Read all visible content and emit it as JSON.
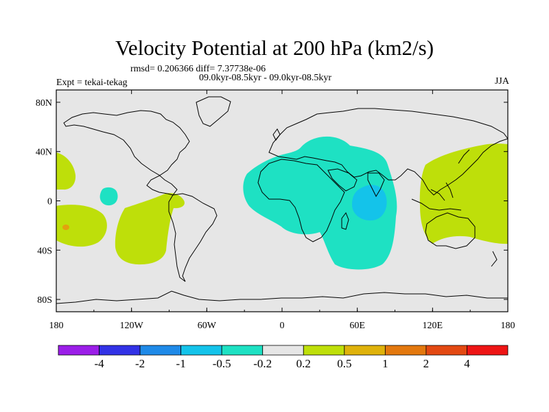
{
  "chart_data": {
    "type": "heatmap",
    "title": "Velocity Potential at 200 hPa (km2/s)",
    "stats_line": "rmsd= 0.206366 diff= 7.37738e-06",
    "period_line": "09.0kyr-08.5kyr - 09.0kyr-08.5kyr",
    "experiment": "Expt = tekai-tekag",
    "season": "JJA",
    "x_ticks": [
      "180",
      "120W",
      "60W",
      "0",
      "60E",
      "120E",
      "180"
    ],
    "y_ticks": [
      "80N",
      "40N",
      "0",
      "40S",
      "80S"
    ],
    "xlim": [
      -180,
      180
    ],
    "ylim": [
      -90,
      90
    ],
    "colorbar_levels": [
      "-4",
      "-2",
      "-1",
      "-0.5",
      "-0.2",
      "0.2",
      "0.5",
      "1",
      "2",
      "4"
    ],
    "colorbar_colors": [
      "#9b1ee8",
      "#3232e6",
      "#1f8ae8",
      "#14c3ea",
      "#1ee1c3",
      "#e6e6e6",
      "#bedf0a",
      "#dfb20b",
      "#e3780e",
      "#e34912",
      "#ee1515"
    ],
    "anomaly_regions": [
      {
        "category": "-0.5 to -0.2",
        "center_lon": 40,
        "center_lat": 10,
        "description": "Africa / Arabia / Indian Ocean"
      },
      {
        "category": "-1 to -0.5",
        "center_lon": 70,
        "center_lat": -2,
        "description": "central Indian Ocean"
      },
      {
        "category": "-0.5 to -0.2",
        "center_lon": -144,
        "center_lat": 5,
        "description": "central tropical Pacific"
      },
      {
        "category": "0.2 to 0.5",
        "center_lon": 150,
        "center_lat": 10,
        "description": "western Pacific / Maritime Continent"
      },
      {
        "category": "0.2 to 0.5",
        "center_lon": -168,
        "center_lat": -20,
        "description": "south-central Pacific"
      },
      {
        "category": "0.2 to 0.5",
        "center_lon": -110,
        "center_lat": -25,
        "description": "south-eastern Pacific"
      },
      {
        "category": "1 to 2",
        "center_lon": -173,
        "center_lat": -19,
        "description": "small spot, south Pacific"
      }
    ]
  }
}
